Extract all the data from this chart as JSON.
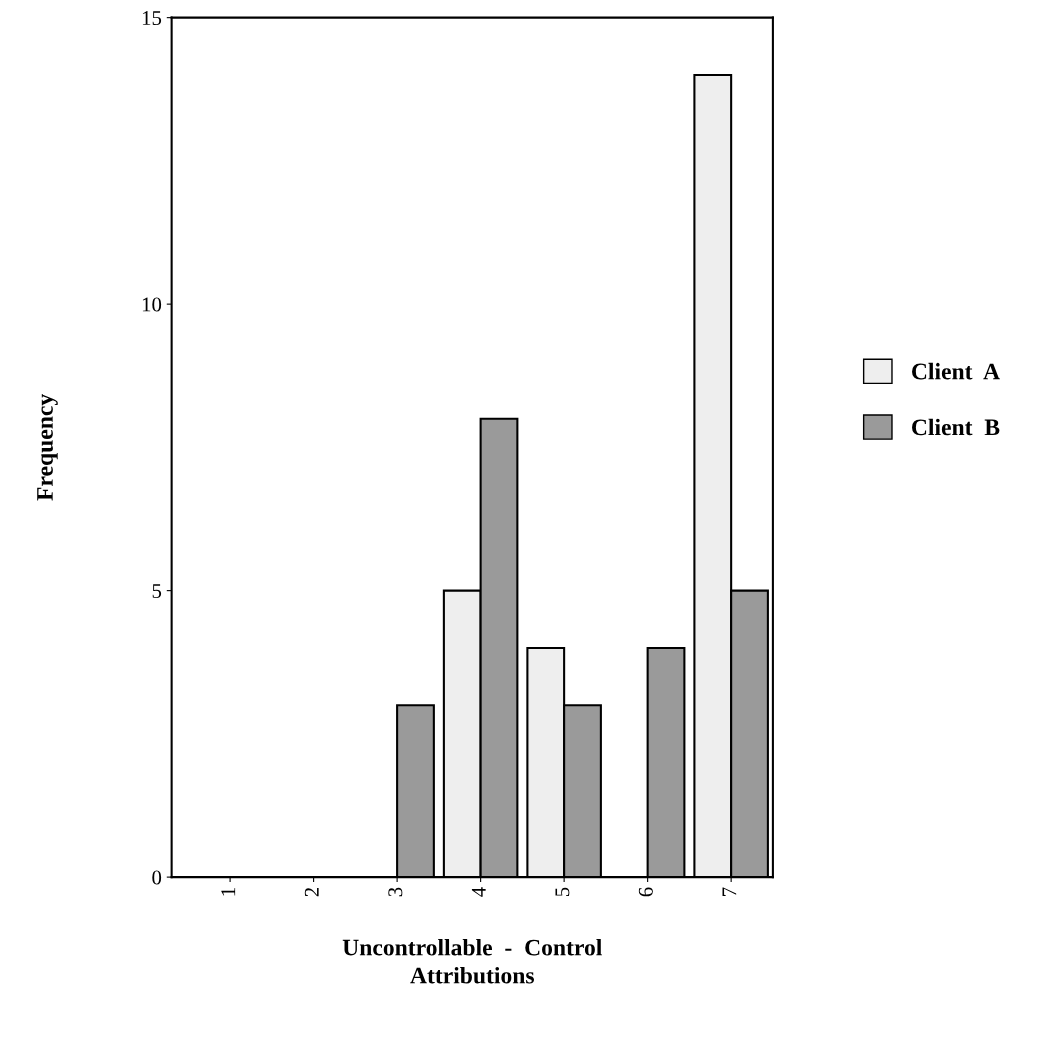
{
  "chart_data": {
    "type": "bar",
    "xlabel": "Uncontrollable  -  Control\nAttributions",
    "ylabel": "Frequency",
    "categories": [
      "1",
      "2",
      "3",
      "4",
      "5",
      "6",
      "7"
    ],
    "series": [
      {
        "name": "Client  A",
        "color": "#eeeeee",
        "values": [
          0,
          0,
          0,
          5,
          4,
          0,
          14
        ]
      },
      {
        "name": "Client  B",
        "color": "#9a9a9a",
        "values": [
          0,
          0,
          3,
          8,
          3,
          4,
          5
        ]
      }
    ],
    "ylim": [
      0,
      15
    ],
    "yticks": [
      0,
      5,
      10,
      15
    ],
    "grid": false,
    "legend": "right"
  }
}
